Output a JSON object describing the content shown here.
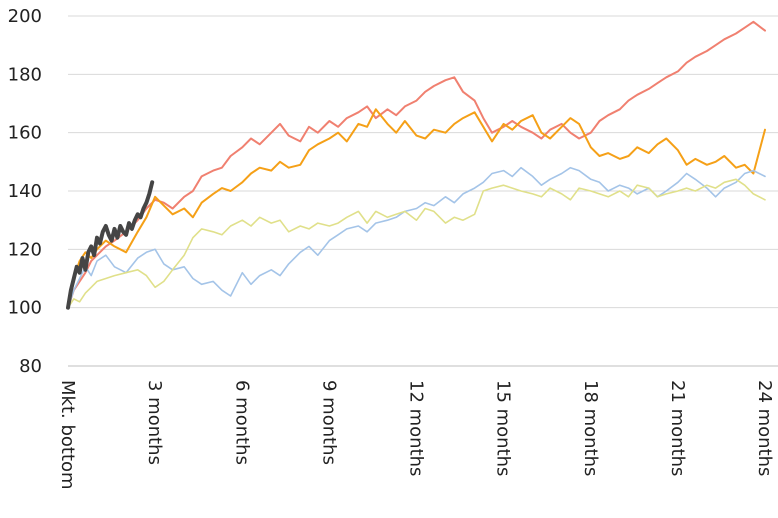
{
  "chart_data": {
    "type": "line",
    "title": "",
    "xlabel": "",
    "ylabel": "",
    "ylim": [
      80,
      200
    ],
    "yticks": [
      "80",
      "100",
      "120",
      "140",
      "160",
      "180",
      "200"
    ],
    "xlim": [
      0,
      24
    ],
    "xticks": [
      {
        "x": 0,
        "label": "Mkt. bottom"
      },
      {
        "x": 3,
        "label": "3 months"
      },
      {
        "x": 6,
        "label": "6 months"
      },
      {
        "x": 9,
        "label": "9 months"
      },
      {
        "x": 12,
        "label": "12 months"
      },
      {
        "x": 15,
        "label": "15 months"
      },
      {
        "x": 18,
        "label": "18 months"
      },
      {
        "x": 21,
        "label": "21 months"
      },
      {
        "x": 24,
        "label": "24 months"
      }
    ],
    "grid": "horizontal",
    "legend": "none",
    "series": [
      {
        "color": "#f08070",
        "width": 2,
        "x": [
          0,
          0.2,
          0.4,
          0.6,
          0.8,
          1,
          1.3,
          1.6,
          2,
          2.4,
          2.7,
          3,
          3.3,
          3.6,
          4,
          4.3,
          4.6,
          5,
          5.3,
          5.6,
          6,
          6.3,
          6.6,
          7,
          7.3,
          7.6,
          8,
          8.3,
          8.6,
          9,
          9.3,
          9.6,
          10,
          10.3,
          10.6,
          11,
          11.3,
          11.6,
          12,
          12.3,
          12.6,
          13,
          13.3,
          13.6,
          14,
          14.3,
          14.6,
          15,
          15.3,
          15.6,
          16,
          16.3,
          16.6,
          17,
          17.3,
          17.6,
          18,
          18.3,
          18.6,
          19,
          19.3,
          19.6,
          20,
          20.3,
          20.6,
          21,
          21.3,
          21.6,
          22,
          22.3,
          22.6,
          23,
          23.3,
          23.6,
          24
        ],
        "y": [
          100,
          106,
          109,
          112,
          116,
          118,
          121,
          123,
          126,
          130,
          134,
          137,
          136,
          134,
          138,
          140,
          145,
          147,
          148,
          152,
          155,
          158,
          156,
          160,
          163,
          159,
          157,
          162,
          160,
          164,
          162,
          165,
          167,
          169,
          165,
          168,
          166,
          169,
          171,
          174,
          176,
          178,
          179,
          174,
          171,
          165,
          160,
          162,
          164,
          162,
          160,
          158,
          161,
          163,
          160,
          158,
          160,
          164,
          166,
          168,
          171,
          173,
          175,
          177,
          179,
          181,
          184,
          186,
          188,
          190,
          192,
          194,
          196,
          198,
          195
        ]
      },
      {
        "color": "#f5a017",
        "width": 2,
        "x": [
          0,
          0.2,
          0.4,
          0.6,
          0.8,
          1,
          1.3,
          1.6,
          2,
          2.4,
          2.7,
          3,
          3.3,
          3.6,
          4,
          4.3,
          4.6,
          5,
          5.3,
          5.6,
          6,
          6.3,
          6.6,
          7,
          7.3,
          7.6,
          8,
          8.3,
          8.6,
          9,
          9.3,
          9.6,
          10,
          10.3,
          10.6,
          11,
          11.3,
          11.6,
          12,
          12.3,
          12.6,
          13,
          13.3,
          13.6,
          14,
          14.3,
          14.6,
          15,
          15.3,
          15.6,
          16,
          16.3,
          16.6,
          17,
          17.3,
          17.6,
          18,
          18.3,
          18.6,
          19,
          19.3,
          19.6,
          20,
          20.3,
          20.6,
          21,
          21.3,
          21.6,
          22,
          22.3,
          22.6,
          23,
          23.3,
          23.6,
          24
        ],
        "y": [
          100,
          110,
          116,
          119,
          117,
          120,
          123,
          121,
          119,
          126,
          131,
          138,
          135,
          132,
          134,
          131,
          136,
          139,
          141,
          140,
          143,
          146,
          148,
          147,
          150,
          148,
          149,
          154,
          156,
          158,
          160,
          157,
          163,
          162,
          168,
          163,
          160,
          164,
          159,
          158,
          161,
          160,
          163,
          165,
          167,
          162,
          157,
          163,
          161,
          164,
          166,
          160,
          158,
          162,
          165,
          163,
          155,
          152,
          153,
          151,
          152,
          155,
          153,
          156,
          158,
          154,
          149,
          151,
          149,
          150,
          152,
          148,
          149,
          146,
          161
        ]
      },
      {
        "color": "#a4c4e8",
        "width": 1.6,
        "x": [
          0,
          0.2,
          0.4,
          0.6,
          0.8,
          1,
          1.3,
          1.6,
          2,
          2.4,
          2.7,
          3,
          3.3,
          3.6,
          4,
          4.3,
          4.6,
          5,
          5.3,
          5.6,
          6,
          6.3,
          6.6,
          7,
          7.3,
          7.6,
          8,
          8.3,
          8.6,
          9,
          9.3,
          9.6,
          10,
          10.3,
          10.6,
          11,
          11.3,
          11.6,
          12,
          12.3,
          12.6,
          13,
          13.3,
          13.6,
          14,
          14.3,
          14.6,
          15,
          15.3,
          15.6,
          16,
          16.3,
          16.6,
          17,
          17.3,
          17.6,
          18,
          18.3,
          18.6,
          19,
          19.3,
          19.6,
          20,
          20.3,
          20.6,
          21,
          21.3,
          21.6,
          22,
          22.3,
          22.6,
          23,
          23.3,
          23.6,
          24
        ],
        "y": [
          100,
          106,
          110,
          114,
          111,
          116,
          118,
          114,
          112,
          117,
          119,
          120,
          115,
          113,
          114,
          110,
          108,
          109,
          106,
          104,
          112,
          108,
          111,
          113,
          111,
          115,
          119,
          121,
          118,
          123,
          125,
          127,
          128,
          126,
          129,
          130,
          131,
          133,
          134,
          136,
          135,
          138,
          136,
          139,
          141,
          143,
          146,
          147,
          145,
          148,
          145,
          142,
          144,
          146,
          148,
          147,
          144,
          143,
          140,
          142,
          141,
          139,
          141,
          138,
          140,
          143,
          146,
          144,
          141,
          138,
          141,
          143,
          146,
          147,
          145
        ]
      },
      {
        "color": "#e0e08a",
        "width": 1.6,
        "x": [
          0,
          0.2,
          0.4,
          0.6,
          0.8,
          1,
          1.3,
          1.6,
          2,
          2.4,
          2.7,
          3,
          3.3,
          3.6,
          4,
          4.3,
          4.6,
          5,
          5.3,
          5.6,
          6,
          6.3,
          6.6,
          7,
          7.3,
          7.6,
          8,
          8.3,
          8.6,
          9,
          9.3,
          9.6,
          10,
          10.3,
          10.6,
          11,
          11.3,
          11.6,
          12,
          12.3,
          12.6,
          13,
          13.3,
          13.6,
          14,
          14.3,
          14.6,
          15,
          15.3,
          15.6,
          16,
          16.3,
          16.6,
          17,
          17.3,
          17.6,
          18,
          18.3,
          18.6,
          19,
          19.3,
          19.6,
          20,
          20.3,
          20.6,
          21,
          21.3,
          21.6,
          22,
          22.3,
          22.6,
          23,
          23.3,
          23.6,
          24
        ],
        "y": [
          100,
          103,
          102,
          105,
          107,
          109,
          110,
          111,
          112,
          113,
          111,
          107,
          109,
          113,
          118,
          124,
          127,
          126,
          125,
          128,
          130,
          128,
          131,
          129,
          130,
          126,
          128,
          127,
          129,
          128,
          129,
          131,
          133,
          129,
          133,
          131,
          132,
          133,
          130,
          134,
          133,
          129,
          131,
          130,
          132,
          140,
          141,
          142,
          141,
          140,
          139,
          138,
          141,
          139,
          137,
          141,
          140,
          139,
          138,
          140,
          138,
          142,
          141,
          138,
          139,
          140,
          141,
          140,
          142,
          141,
          143,
          144,
          142,
          139,
          137
        ]
      },
      {
        "color": "#454545",
        "width": 4,
        "x": [
          0,
          0.1,
          0.2,
          0.3,
          0.4,
          0.5,
          0.6,
          0.7,
          0.8,
          0.9,
          1.0,
          1.1,
          1.2,
          1.3,
          1.4,
          1.5,
          1.6,
          1.7,
          1.8,
          1.9,
          2.0,
          2.1,
          2.2,
          2.3,
          2.4,
          2.5,
          2.6,
          2.7,
          2.8,
          2.9
        ],
        "y": [
          100,
          106,
          110,
          114,
          112,
          117,
          113,
          119,
          121,
          118,
          124,
          122,
          126,
          128,
          125,
          123,
          127,
          124,
          128,
          126,
          125,
          129,
          127,
          130,
          132,
          131,
          134,
          136,
          139,
          143
        ]
      }
    ]
  }
}
